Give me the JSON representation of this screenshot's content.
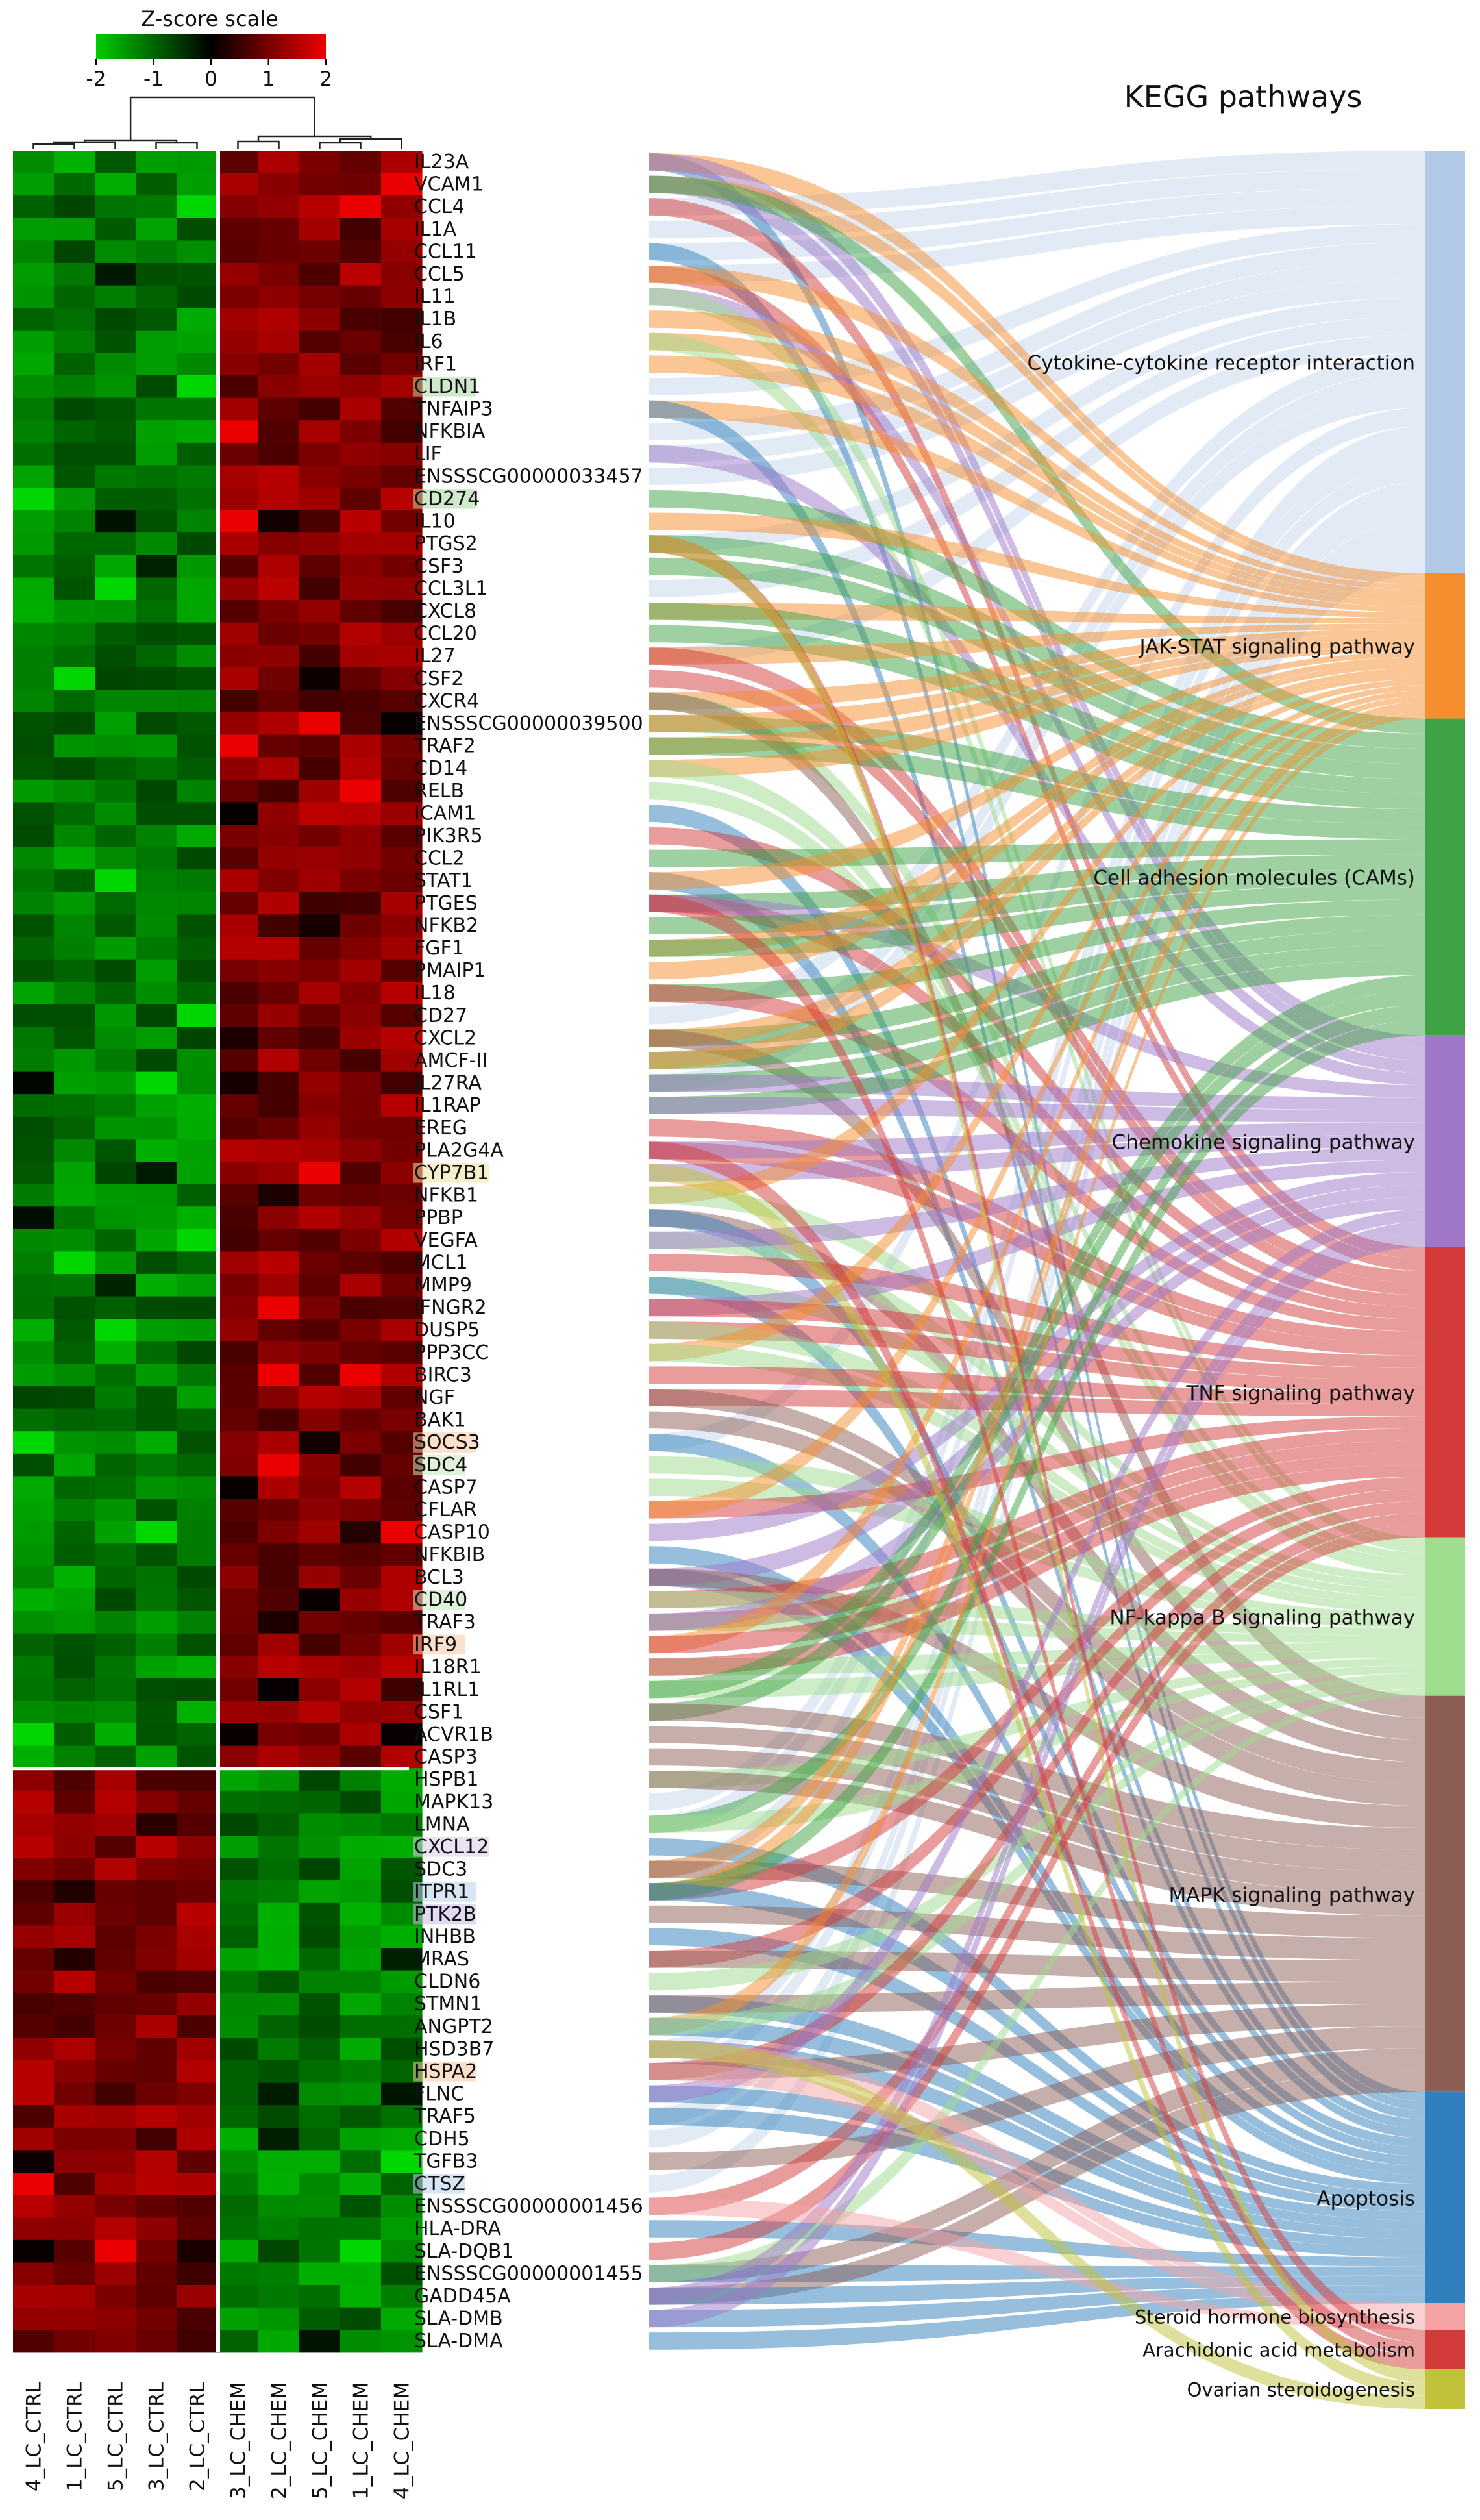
{
  "chart_data": {
    "type": "heatmap",
    "title": "KEGG pathways",
    "colorbar": {
      "title": "Z-score scale",
      "ticks": [
        "-2",
        "-1",
        "0",
        "1",
        "2"
      ],
      "range": [
        -2,
        2
      ],
      "low_color": "#00cc00",
      "mid_color": "#000000",
      "high_color": "#ee0000"
    },
    "samples": [
      "4_LC_CTRL",
      "1_LC_CTRL",
      "5_LC_CTRL",
      "3_LC_CTRL",
      "2_LC_CTRL",
      "3_LC_CHEM",
      "2_LC_CHEM",
      "5_LC_CHEM",
      "1_LC_CHEM",
      "4_LC_CHEM"
    ],
    "genes": [
      "IL23A",
      "VCAM1",
      "CCL4",
      "IL1A",
      "CCL11",
      "CCL5",
      "IL11",
      "IL1B",
      "IL6",
      "IRF1",
      "CLDN1",
      "TNFAIP3",
      "NFKBIA",
      "LIF",
      "ENSSSCG00000033457",
      "CD274",
      "IL10",
      "PTGS2",
      "CSF3",
      "CCL3L1",
      "CXCL8",
      "CCL20",
      "IL27",
      "CSF2",
      "CXCR4",
      "ENSSSCG00000039500",
      "TRAF2",
      "CD14",
      "RELB",
      "ICAM1",
      "PIK3R5",
      "CCL2",
      "STAT1",
      "PTGES",
      "NFKB2",
      "FGF1",
      "PMAIP1",
      "IL18",
      "CD27",
      "CXCL2",
      "AMCF-II",
      "IL27RA",
      "IL1RAP",
      "EREG",
      "PLA2G4A",
      "CYP7B1",
      "NFKB1",
      "PPBP",
      "VEGFA",
      "MCL1",
      "MMP9",
      "IFNGR2",
      "DUSP5",
      "PPP3CC",
      "BIRC3",
      "NGF",
      "BAK1",
      "SOCS3",
      "SDC4",
      "CASP7",
      "CFLAR",
      "CASP10",
      "NFKBIB",
      "BCL3",
      "CD40",
      "TRAF3",
      "IRF9",
      "IL18R1",
      "IL1RL1",
      "CSF1",
      "ACVR1B",
      "CASP3",
      "HSPB1",
      "MAPK13",
      "LMNA",
      "CXCL12",
      "SDC3",
      "ITPR1",
      "PTK2B",
      "INHBB",
      "MRAS",
      "CLDN6",
      "STMN1",
      "ANGPT2",
      "HSD3B7",
      "HSPA2",
      "FLNC",
      "TRAF5",
      "CDH5",
      "TGFB3",
      "CTSZ",
      "ENSSSCG00000001456",
      "HLA-DRA",
      "SLA-DQB1",
      "ENSSSCG00000001455",
      "GADD45A",
      "SLA-DMB",
      "SLA-DMA"
    ],
    "upregulated_gene_count": 72,
    "downregulated_gene_count": 26,
    "gene_label_tints": {
      "CLDN1": "#a8d8a0",
      "CD274": "#a8d8a0",
      "CYP7B1": "#f0e2a0",
      "SOCS3": "#f7c9a0",
      "SDC4": "#c8e8c0",
      "CD40": "#c8e8c0",
      "IRF9": "#f7c9a0",
      "CXCL12": "#d8c8e8",
      "ITPR1": "#b8d0f0",
      "PTK2B": "#c8b8e8",
      "HSPA2": "#f7c9a0",
      "CTSZ": "#b8d0f0"
    },
    "pathways": [
      {
        "name": "Cytokine-cytokine receptor interaction",
        "color": "#b1c8e6",
        "size": 32
      },
      {
        "name": "JAK-STAT signaling pathway",
        "color": "#f68e2e",
        "size": 11
      },
      {
        "name": "Cell adhesion molecules (CAMs)",
        "color": "#3fa245",
        "size": 24
      },
      {
        "name": "Chemokine signaling pathway",
        "color": "#9e77c8",
        "size": 16
      },
      {
        "name": "TNF signaling pathway",
        "color": "#d43a3a",
        "size": 22
      },
      {
        "name": "NF-kappa B signaling pathway",
        "color": "#9edc8e",
        "size": 12
      },
      {
        "name": "MAPK signaling pathway",
        "color": "#8d5e55",
        "size": 30
      },
      {
        "name": "Apoptosis",
        "color": "#2f80bc",
        "size": 16
      },
      {
        "name": "Steroid hormone biosynthesis",
        "color": "#f6a3a5",
        "size": 2
      },
      {
        "name": "Arachidonic acid metabolism",
        "color": "#d33a3a",
        "size": 3
      },
      {
        "name": "Ovarian steroidogenesis",
        "color": "#c0c23a",
        "size": 3
      }
    ]
  }
}
